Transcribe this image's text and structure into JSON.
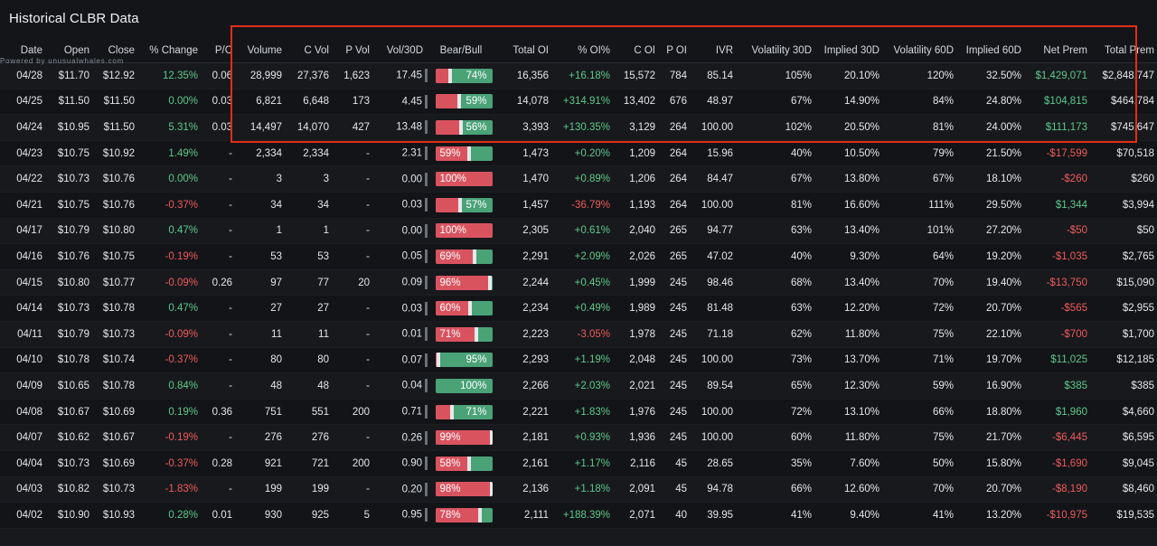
{
  "title": "Historical CLBR Data",
  "powered_by": "Powered by unusualwhales.com",
  "columns": [
    "Date",
    "Open",
    "Close",
    "% Change",
    "P/C",
    "Volume",
    "C Vol",
    "P Vol",
    "Vol/30D",
    "Bear/Bull",
    "Total OI",
    "% OI%",
    "C OI",
    "P OI",
    "IVR",
    "Volatility 30D",
    "Implied 30D",
    "Volatility 60D",
    "Implied 60D",
    "Net Prem",
    "Total Prem"
  ],
  "rows": [
    {
      "date": "04/28",
      "open": "$11.70",
      "close": "$12.92",
      "change": "12.35%",
      "pc": "0.06",
      "volume": "28,999",
      "cvol": "27,376",
      "pvol": "1,623",
      "vol30d": "17.45",
      "bb_label": "74%",
      "bb_bull": 0.74,
      "total_oi": "16,356",
      "oi_pct": "+16.18%",
      "coi": "15,572",
      "poi": "784",
      "ivr": "85.14",
      "v30": "105%",
      "i30": "20.10%",
      "v60": "120%",
      "i60": "32.50%",
      "net_prem": "$1,429,071",
      "total_prem": "$2,848,747"
    },
    {
      "date": "04/25",
      "open": "$11.50",
      "close": "$11.50",
      "change": "0.00%",
      "pc": "0.03",
      "volume": "6,821",
      "cvol": "6,648",
      "pvol": "173",
      "vol30d": "4.45",
      "bb_label": "59%",
      "bb_bull": 0.59,
      "total_oi": "14,078",
      "oi_pct": "+314.91%",
      "coi": "13,402",
      "poi": "676",
      "ivr": "48.97",
      "v30": "67%",
      "i30": "14.90%",
      "v60": "84%",
      "i60": "24.80%",
      "net_prem": "$104,815",
      "total_prem": "$464,784"
    },
    {
      "date": "04/24",
      "open": "$10.95",
      "close": "$11.50",
      "change": "5.31%",
      "pc": "0.03",
      "volume": "14,497",
      "cvol": "14,070",
      "pvol": "427",
      "vol30d": "13.48",
      "bb_label": "56%",
      "bb_bull": 0.56,
      "total_oi": "3,393",
      "oi_pct": "+130.35%",
      "coi": "3,129",
      "poi": "264",
      "ivr": "100.00",
      "v30": "102%",
      "i30": "20.50%",
      "v60": "81%",
      "i60": "24.00%",
      "net_prem": "$111,173",
      "total_prem": "$745,647"
    },
    {
      "date": "04/23",
      "open": "$10.75",
      "close": "$10.92",
      "change": "1.49%",
      "pc": "-",
      "volume": "2,334",
      "cvol": "2,334",
      "pvol": "-",
      "vol30d": "2.31",
      "bb_label": "59%",
      "bb_bull": 0.41,
      "total_oi": "1,473",
      "oi_pct": "+0.20%",
      "coi": "1,209",
      "poi": "264",
      "ivr": "15.96",
      "v30": "40%",
      "i30": "10.50%",
      "v60": "79%",
      "i60": "21.50%",
      "net_prem": "-$17,599",
      "total_prem": "$70,518"
    },
    {
      "date": "04/22",
      "open": "$10.73",
      "close": "$10.76",
      "change": "0.00%",
      "pc": "-",
      "volume": "3",
      "cvol": "3",
      "pvol": "-",
      "vol30d": "0.00",
      "bb_label": "100%",
      "bb_bull": 0.0,
      "total_oi": "1,470",
      "oi_pct": "+0.89%",
      "coi": "1,206",
      "poi": "264",
      "ivr": "84.47",
      "v30": "67%",
      "i30": "13.80%",
      "v60": "67%",
      "i60": "18.10%",
      "net_prem": "-$260",
      "total_prem": "$260"
    },
    {
      "date": "04/21",
      "open": "$10.75",
      "close": "$10.76",
      "change": "-0.37%",
      "pc": "-",
      "volume": "34",
      "cvol": "34",
      "pvol": "-",
      "vol30d": "0.03",
      "bb_label": "57%",
      "bb_bull": 0.57,
      "total_oi": "1,457",
      "oi_pct": "-36.79%",
      "coi": "1,193",
      "poi": "264",
      "ivr": "100.00",
      "v30": "81%",
      "i30": "16.60%",
      "v60": "111%",
      "i60": "29.50%",
      "net_prem": "$1,344",
      "total_prem": "$3,994"
    },
    {
      "date": "04/17",
      "open": "$10.79",
      "close": "$10.80",
      "change": "0.47%",
      "pc": "-",
      "volume": "1",
      "cvol": "1",
      "pvol": "-",
      "vol30d": "0.00",
      "bb_label": "100%",
      "bb_bull": 0.0,
      "total_oi": "2,305",
      "oi_pct": "+0.61%",
      "coi": "2,040",
      "poi": "265",
      "ivr": "94.77",
      "v30": "63%",
      "i30": "13.40%",
      "v60": "101%",
      "i60": "27.20%",
      "net_prem": "-$50",
      "total_prem": "$50"
    },
    {
      "date": "04/16",
      "open": "$10.76",
      "close": "$10.75",
      "change": "-0.19%",
      "pc": "-",
      "volume": "53",
      "cvol": "53",
      "pvol": "-",
      "vol30d": "0.05",
      "bb_label": "69%",
      "bb_bull": 0.31,
      "total_oi": "2,291",
      "oi_pct": "+2.09%",
      "coi": "2,026",
      "poi": "265",
      "ivr": "47.02",
      "v30": "40%",
      "i30": "9.30%",
      "v60": "64%",
      "i60": "19.20%",
      "net_prem": "-$1,035",
      "total_prem": "$2,765"
    },
    {
      "date": "04/15",
      "open": "$10.80",
      "close": "$10.77",
      "change": "-0.09%",
      "pc": "0.26",
      "volume": "97",
      "cvol": "77",
      "pvol": "20",
      "vol30d": "0.09",
      "bb_label": "96%",
      "bb_bull": 0.04,
      "total_oi": "2,244",
      "oi_pct": "+0.45%",
      "coi": "1,999",
      "poi": "245",
      "ivr": "98.46",
      "v30": "68%",
      "i30": "13.40%",
      "v60": "70%",
      "i60": "19.40%",
      "net_prem": "-$13,750",
      "total_prem": "$15,090"
    },
    {
      "date": "04/14",
      "open": "$10.73",
      "close": "$10.78",
      "change": "0.47%",
      "pc": "-",
      "volume": "27",
      "cvol": "27",
      "pvol": "-",
      "vol30d": "0.03",
      "bb_label": "60%",
      "bb_bull": 0.4,
      "total_oi": "2,234",
      "oi_pct": "+0.49%",
      "coi": "1,989",
      "poi": "245",
      "ivr": "81.48",
      "v30": "63%",
      "i30": "12.20%",
      "v60": "72%",
      "i60": "20.70%",
      "net_prem": "-$565",
      "total_prem": "$2,955"
    },
    {
      "date": "04/11",
      "open": "$10.79",
      "close": "$10.73",
      "change": "-0.09%",
      "pc": "-",
      "volume": "11",
      "cvol": "11",
      "pvol": "-",
      "vol30d": "0.01",
      "bb_label": "71%",
      "bb_bull": 0.29,
      "total_oi": "2,223",
      "oi_pct": "-3.05%",
      "coi": "1,978",
      "poi": "245",
      "ivr": "71.18",
      "v30": "62%",
      "i30": "11.80%",
      "v60": "75%",
      "i60": "22.10%",
      "net_prem": "-$700",
      "total_prem": "$1,700"
    },
    {
      "date": "04/10",
      "open": "$10.78",
      "close": "$10.74",
      "change": "-0.37%",
      "pc": "-",
      "volume": "80",
      "cvol": "80",
      "pvol": "-",
      "vol30d": "0.07",
      "bb_label": "95%",
      "bb_bull": 0.95,
      "total_oi": "2,293",
      "oi_pct": "+1.19%",
      "coi": "2,048",
      "poi": "245",
      "ivr": "100.00",
      "v30": "73%",
      "i30": "13.70%",
      "v60": "71%",
      "i60": "19.70%",
      "net_prem": "$11,025",
      "total_prem": "$12,185"
    },
    {
      "date": "04/09",
      "open": "$10.65",
      "close": "$10.78",
      "change": "0.84%",
      "pc": "-",
      "volume": "48",
      "cvol": "48",
      "pvol": "-",
      "vol30d": "0.04",
      "bb_label": "100%",
      "bb_bull": 1.0,
      "total_oi": "2,266",
      "oi_pct": "+2.03%",
      "coi": "2,021",
      "poi": "245",
      "ivr": "89.54",
      "v30": "65%",
      "i30": "12.30%",
      "v60": "59%",
      "i60": "16.90%",
      "net_prem": "$385",
      "total_prem": "$385"
    },
    {
      "date": "04/08",
      "open": "$10.67",
      "close": "$10.69",
      "change": "0.19%",
      "pc": "0.36",
      "volume": "751",
      "cvol": "551",
      "pvol": "200",
      "vol30d": "0.71",
      "bb_label": "71%",
      "bb_bull": 0.71,
      "total_oi": "2,221",
      "oi_pct": "+1.83%",
      "coi": "1,976",
      "poi": "245",
      "ivr": "100.00",
      "v30": "72%",
      "i30": "13.10%",
      "v60": "66%",
      "i60": "18.80%",
      "net_prem": "$1,960",
      "total_prem": "$4,660"
    },
    {
      "date": "04/07",
      "open": "$10.62",
      "close": "$10.67",
      "change": "-0.19%",
      "pc": "-",
      "volume": "276",
      "cvol": "276",
      "pvol": "-",
      "vol30d": "0.26",
      "bb_label": "99%",
      "bb_bull": 0.01,
      "total_oi": "2,181",
      "oi_pct": "+0.93%",
      "coi": "1,936",
      "poi": "245",
      "ivr": "100.00",
      "v30": "60%",
      "i30": "11.80%",
      "v60": "75%",
      "i60": "21.70%",
      "net_prem": "-$6,445",
      "total_prem": "$6,595"
    },
    {
      "date": "04/04",
      "open": "$10.73",
      "close": "$10.69",
      "change": "-0.37%",
      "pc": "0.28",
      "volume": "921",
      "cvol": "721",
      "pvol": "200",
      "vol30d": "0.90",
      "bb_label": "58%",
      "bb_bull": 0.42,
      "total_oi": "2,161",
      "oi_pct": "+1.17%",
      "coi": "2,116",
      "poi": "45",
      "ivr": "28.65",
      "v30": "35%",
      "i30": "7.60%",
      "v60": "50%",
      "i60": "15.80%",
      "net_prem": "-$1,690",
      "total_prem": "$9,045"
    },
    {
      "date": "04/03",
      "open": "$10.82",
      "close": "$10.73",
      "change": "-1.83%",
      "pc": "-",
      "volume": "199",
      "cvol": "199",
      "pvol": "-",
      "vol30d": "0.20",
      "bb_label": "98%",
      "bb_bull": 0.02,
      "total_oi": "2,136",
      "oi_pct": "+1.18%",
      "coi": "2,091",
      "poi": "45",
      "ivr": "94.78",
      "v30": "66%",
      "i30": "12.60%",
      "v60": "70%",
      "i60": "20.70%",
      "net_prem": "-$8,190",
      "total_prem": "$8,460"
    },
    {
      "date": "04/02",
      "open": "$10.90",
      "close": "$10.93",
      "change": "0.28%",
      "pc": "0.01",
      "volume": "930",
      "cvol": "925",
      "pvol": "5",
      "vol30d": "0.95",
      "bb_label": "78%",
      "bb_bull": 0.22,
      "total_oi": "2,111",
      "oi_pct": "+188.39%",
      "coi": "2,071",
      "poi": "40",
      "ivr": "39.95",
      "v30": "41%",
      "i30": "9.40%",
      "v60": "41%",
      "i60": "13.20%",
      "net_prem": "-$10,975",
      "total_prem": "$19,535"
    }
  ],
  "colors": {
    "bull": "#4aa277",
    "bear": "#d9535f",
    "positive": "#5ec98b",
    "negative": "#ef5b5b",
    "highlight": "#e52b1a"
  }
}
